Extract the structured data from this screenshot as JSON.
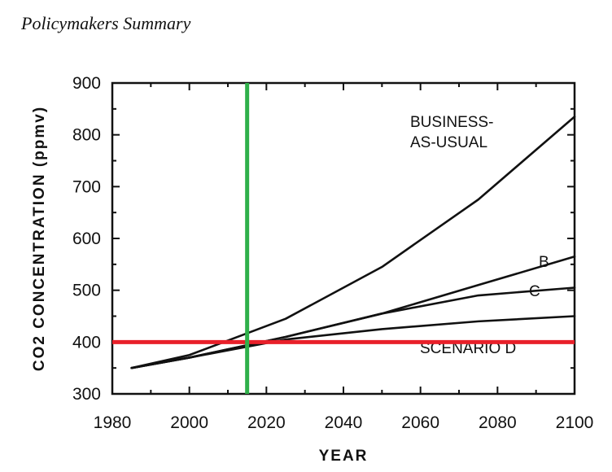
{
  "header": "Policymakers Summary",
  "chart_data": {
    "type": "line",
    "xlabel": "YEAR",
    "ylabel": "CO2 CONCENTRATION (ppmv)",
    "xlim": [
      1980,
      2100
    ],
    "ylim": [
      300,
      900
    ],
    "xticks": [
      1980,
      2000,
      2020,
      2040,
      2060,
      2080,
      2100
    ],
    "yticks": [
      300,
      400,
      500,
      600,
      700,
      800,
      900
    ],
    "series": [
      {
        "name": "BUSINESS-AS-USUAL",
        "x": [
          1985,
          2000,
          2025,
          2050,
          2075,
          2100
        ],
        "y": [
          350,
          375,
          445,
          545,
          675,
          835
        ]
      },
      {
        "name": "B",
        "x": [
          1985,
          2000,
          2025,
          2050,
          2075,
          2100
        ],
        "y": [
          350,
          370,
          410,
          455,
          510,
          565
        ]
      },
      {
        "name": "C",
        "x": [
          1985,
          2000,
          2025,
          2050,
          2075,
          2100
        ],
        "y": [
          350,
          370,
          410,
          455,
          490,
          505
        ]
      },
      {
        "name": "SCENARIO D",
        "x": [
          1985,
          2000,
          2025,
          2050,
          2075,
          2100
        ],
        "y": [
          350,
          370,
          405,
          425,
          440,
          450
        ]
      }
    ],
    "annotations": {
      "bau_line1": "BUSINESS-",
      "bau_line2": "AS-USUAL",
      "b": "B",
      "c": "C",
      "d": "SCENARIO D"
    },
    "reference_lines": {
      "horizontal": {
        "y": 400,
        "color": "#e8202a"
      },
      "vertical": {
        "x": 2015,
        "color": "#2fb04a"
      }
    },
    "colors": {
      "series": "#111111"
    }
  }
}
